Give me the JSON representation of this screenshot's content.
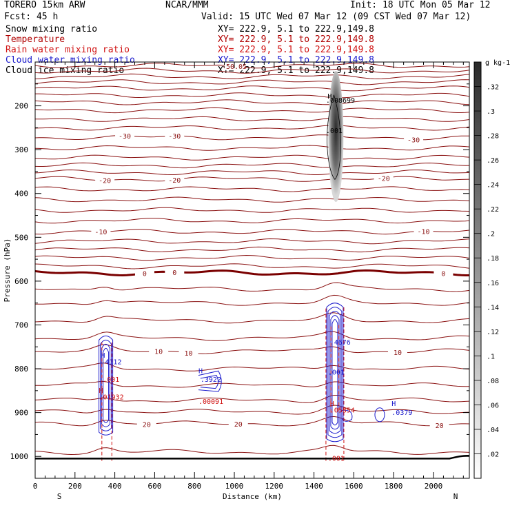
{
  "header": {
    "model": "TORERO  15km ARW",
    "center": "NCAR/MMM",
    "init": "Init: 18 UTC Mon 05 Mar 12",
    "fcst": "Fcst:   45 h",
    "valid": "Valid: 15 UTC Wed 07 Mar 12 (09 CST Wed 07 Mar 12)"
  },
  "legend": [
    {
      "name": "Snow mixing ratio",
      "color": "#000000",
      "xy": "XY= 222.9,  5.1 to 222.9,149.8"
    },
    {
      "name": "Temperature",
      "color": "#b00000",
      "xy": "XY= 222.9,  5.1 to 222.9,149.8"
    },
    {
      "name": "Rain water mixing ratio",
      "color": "#d01010",
      "xy": "XY= 222.9,  5.1 to 222.9,149.8"
    },
    {
      "name": "Cloud water mixing ratio",
      "color": "#1a1acc",
      "xy": "XY= 222.9,  5.1 to 222.9,149.8"
    },
    {
      "name": "Cloud ice mixing ratio",
      "color": "#000000",
      "xy": "XY= 222.9,  5.1 to 222.9,149.8"
    }
  ],
  "chart_data": {
    "type": "cross-section",
    "xlabel": "Distance (km)",
    "ylabel": "Pressure (hPa)",
    "xlim": [
      0,
      2180
    ],
    "ylim": [
      1050,
      100
    ],
    "x_ticks": [
      0,
      200,
      400,
      600,
      800,
      1000,
      1200,
      1400,
      1600,
      1800,
      2000
    ],
    "y_ticks": [
      200,
      300,
      400,
      500,
      600,
      700,
      800,
      900,
      1000
    ],
    "x_end_labels": {
      "left": "S",
      "right": "N"
    },
    "colorbar": {
      "units": "g kg-1",
      "ticks": [
        ".02",
        ".04",
        ".06",
        ".08",
        ".1",
        ".12",
        ".14",
        ".16",
        ".18",
        ".2",
        ".22",
        ".24",
        ".26",
        ".28",
        ".3",
        ".32"
      ],
      "min": 0,
      "max": 0.34
    },
    "temperature_contours_C": [
      {
        "value": -50,
        "p": 108,
        "labels": [
          {
            "x": 1000,
            "text": "-50.05"
          }
        ]
      },
      {
        "value": -48,
        "p": 120
      },
      {
        "value": -46,
        "p": 133
      },
      {
        "value": -44,
        "p": 146
      },
      {
        "value": -42,
        "p": 160
      },
      {
        "value": -40,
        "p": 176
      },
      {
        "value": -38,
        "p": 192
      },
      {
        "value": -36,
        "p": 210
      },
      {
        "value": -34,
        "p": 230
      },
      {
        "value": -32,
        "p": 250
      },
      {
        "value": -30,
        "p": 272,
        "labels": [
          {
            "x": 450,
            "text": "-30"
          },
          {
            "x": 700,
            "text": "-30"
          },
          {
            "x": 1900,
            "text": "-30"
          }
        ]
      },
      {
        "value": -28,
        "p": 296
      },
      {
        "value": -26,
        "p": 318
      },
      {
        "value": -24,
        "p": 336
      },
      {
        "value": -22,
        "p": 352
      },
      {
        "value": -20,
        "p": 367,
        "labels": [
          {
            "x": 350,
            "text": "-20"
          },
          {
            "x": 700,
            "text": "-20"
          },
          {
            "x": 1750,
            "text": "-20"
          }
        ]
      },
      {
        "value": -18,
        "p": 390
      },
      {
        "value": -16,
        "p": 414
      },
      {
        "value": -14,
        "p": 438
      },
      {
        "value": -12,
        "p": 462
      },
      {
        "value": -10,
        "p": 487,
        "labels": [
          {
            "x": 330,
            "text": "-10"
          },
          {
            "x": 1950,
            "text": "-10"
          }
        ]
      },
      {
        "value": -8,
        "p": 509
      },
      {
        "value": -6,
        "p": 528
      },
      {
        "value": -4,
        "p": 547
      },
      {
        "value": -2,
        "p": 566
      },
      {
        "value": 0,
        "p": 581,
        "labels": [
          {
            "x": 550,
            "text": "0"
          },
          {
            "x": 700,
            "text": "0"
          },
          {
            "x": 2050,
            "text": "0"
          }
        ]
      },
      {
        "value": 2,
        "p": 618
      },
      {
        "value": 4,
        "p": 650
      },
      {
        "value": 6,
        "p": 690
      },
      {
        "value": 8,
        "p": 730
      },
      {
        "value": 10,
        "p": 760,
        "labels": [
          {
            "x": 620,
            "text": "10"
          },
          {
            "x": 770,
            "text": "10"
          },
          {
            "x": 1820,
            "text": "10"
          }
        ]
      },
      {
        "value": 12,
        "p": 800
      },
      {
        "value": 14,
        "p": 838
      },
      {
        "value": 16,
        "p": 872
      },
      {
        "value": 18,
        "p": 898
      },
      {
        "value": 20,
        "p": 925,
        "labels": [
          {
            "x": 560,
            "text": "20"
          },
          {
            "x": 1020,
            "text": "20"
          },
          {
            "x": 2030,
            "text": "20"
          }
        ]
      },
      {
        "value": 22,
        "p": 990
      }
    ],
    "surface_pressure_hPa": 1005,
    "cloud_ice_max": {
      "x": 1510,
      "p": 225,
      "value": ".008699",
      "inner_label": ".001"
    },
    "rain_water_labels": [
      {
        "x": 320,
        "p": 870,
        "text": ".01932"
      },
      {
        "x": 820,
        "p": 880,
        "text": ".00091"
      },
      {
        "x": 1480,
        "p": 900,
        "text": ".05854"
      },
      {
        "x": 1470,
        "p": 1010,
        "text": ".001"
      },
      {
        "x": 340,
        "p": 830,
        "text": ".001"
      }
    ],
    "cloud_water_labels": [
      {
        "x": 330,
        "p": 790,
        "text": ".4112"
      },
      {
        "x": 830,
        "p": 830,
        "text": ".3922"
      },
      {
        "x": 1480,
        "p": 745,
        "text": ".4676"
      },
      {
        "x": 1470,
        "p": 813,
        "text": ".001"
      },
      {
        "x": 1790,
        "p": 905,
        "text": ".0379"
      }
    ]
  }
}
